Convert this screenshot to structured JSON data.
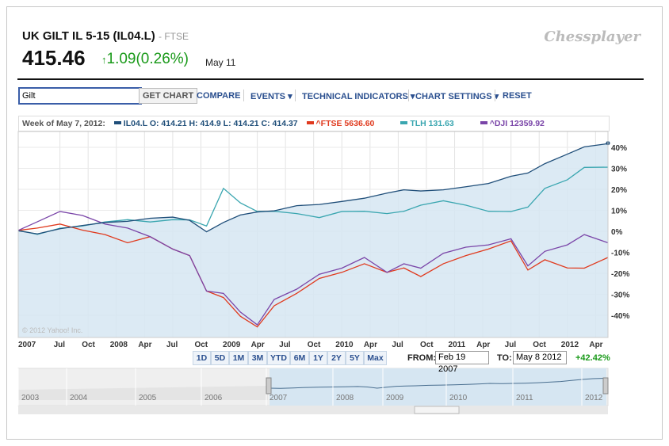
{
  "header": {
    "title": "UK GILT IL 5-15 (IL04.L)",
    "exchange": "- FTSE",
    "price": "415.46",
    "change": "1.09(0.26%)",
    "date": "May 11",
    "logo": "Chessplayer"
  },
  "toolbar": {
    "search_value": "Gilt",
    "get_chart": "GET CHART",
    "compare": "COMPARE",
    "events": "EVENTS ▾",
    "technical": "TECHNICAL INDICATORS ▾",
    "settings": "CHART SETTINGS ▾",
    "reset": "RESET"
  },
  "legend": {
    "week": "Week of May 7, 2012:",
    "il04": "IL04.L O: 414.21 H: 414.9 L: 414.21 C: 414.37",
    "ftse": "^FTSE 5636.60",
    "tlh": "TLH 131.63",
    "dji": "^DJI 12359.92"
  },
  "ranges": [
    "1D",
    "5D",
    "1M",
    "3M",
    "YTD",
    "6M",
    "1Y",
    "2Y",
    "5Y",
    "Max"
  ],
  "from_label": "FROM:",
  "from_value": "Feb 19 2007",
  "to_label": "TO:",
  "to_value": "May 8 2012",
  "period_change": "+42.42%",
  "copyright": "© 2012 Yahoo! Inc.",
  "colors": {
    "il04": "#1f4e79",
    "ftse": "#e03a1e",
    "tlh": "#3aa6b0",
    "dji": "#7a45a8",
    "fill": "#d6e6f2"
  },
  "chart_data": {
    "type": "line",
    "xlabel": "",
    "ylabel": "% change",
    "ylim": [
      -48,
      45
    ],
    "xlim": [
      2007.13,
      2012.36
    ],
    "yticks": [
      40,
      30,
      20,
      10,
      0,
      -10,
      -20,
      -30,
      -40
    ],
    "xticks": [
      {
        "t": 2007.0,
        "l": "2007"
      },
      {
        "t": 2007.5,
        "l": "Jul"
      },
      {
        "t": 2007.75,
        "l": "Oct"
      },
      {
        "t": 2008.0,
        "l": "2008"
      },
      {
        "t": 2008.25,
        "l": "Apr"
      },
      {
        "t": 2008.5,
        "l": "Jul"
      },
      {
        "t": 2008.75,
        "l": "Oct"
      },
      {
        "t": 2009.0,
        "l": "2009"
      },
      {
        "t": 2009.25,
        "l": "Apr"
      },
      {
        "t": 2009.5,
        "l": "Jul"
      },
      {
        "t": 2009.75,
        "l": "Oct"
      },
      {
        "t": 2010.0,
        "l": "2010"
      },
      {
        "t": 2010.25,
        "l": "Apr"
      },
      {
        "t": 2010.5,
        "l": "Jul"
      },
      {
        "t": 2010.75,
        "l": "Oct"
      },
      {
        "t": 2011.0,
        "l": "2011"
      },
      {
        "t": 2011.25,
        "l": "Apr"
      },
      {
        "t": 2011.5,
        "l": "Jul"
      },
      {
        "t": 2011.75,
        "l": "Oct"
      },
      {
        "t": 2012.0,
        "l": "2012"
      },
      {
        "t": 2012.25,
        "l": "Apr"
      }
    ],
    "x": [
      2007.13,
      2007.3,
      2007.5,
      2007.7,
      2007.9,
      2008.1,
      2008.3,
      2008.5,
      2008.65,
      2008.8,
      2008.95,
      2009.1,
      2009.25,
      2009.4,
      2009.6,
      2009.8,
      2010.0,
      2010.2,
      2010.4,
      2010.55,
      2010.7,
      2010.9,
      2011.1,
      2011.3,
      2011.5,
      2011.65,
      2011.8,
      2012.0,
      2012.15,
      2012.36
    ],
    "series": [
      {
        "name": "IL04.L",
        "values": [
          0,
          -1,
          1,
          3,
          4,
          5,
          6,
          7,
          5,
          0,
          4,
          8,
          9,
          10,
          12,
          13,
          14,
          16,
          18,
          20,
          19,
          20,
          21,
          23,
          26,
          28,
          32,
          37,
          40,
          42
        ]
      },
      {
        "name": "TLH",
        "values": [
          0,
          -1,
          1,
          3,
          4,
          6,
          4,
          6,
          5,
          3,
          20,
          14,
          9,
          10,
          8,
          7,
          9,
          10,
          8,
          10,
          12,
          15,
          12,
          10,
          9,
          12,
          20,
          25,
          30,
          31
        ]
      },
      {
        "name": "^FTSE",
        "values": [
          0,
          2,
          3,
          1,
          -2,
          -5,
          -3,
          -8,
          -12,
          -28,
          -32,
          -40,
          -46,
          -35,
          -30,
          -22,
          -20,
          -15,
          -20,
          -17,
          -22,
          -15,
          -12,
          -8,
          -5,
          -18,
          -14,
          -17,
          -18,
          -12
        ]
      },
      {
        "name": "^DJI",
        "values": [
          0,
          5,
          9,
          8,
          3,
          2,
          -3,
          -8,
          -12,
          -28,
          -30,
          -38,
          -45,
          -32,
          -28,
          -20,
          -18,
          -12,
          -20,
          -15,
          -18,
          -10,
          -8,
          -6,
          -4,
          -16,
          -10,
          -6,
          -2,
          -5
        ]
      }
    ],
    "navigator": {
      "years": [
        "2003",
        "2004",
        "2005",
        "2006",
        "2007",
        "2008",
        "2009",
        "2010",
        "2011",
        "2012"
      ]
    }
  }
}
